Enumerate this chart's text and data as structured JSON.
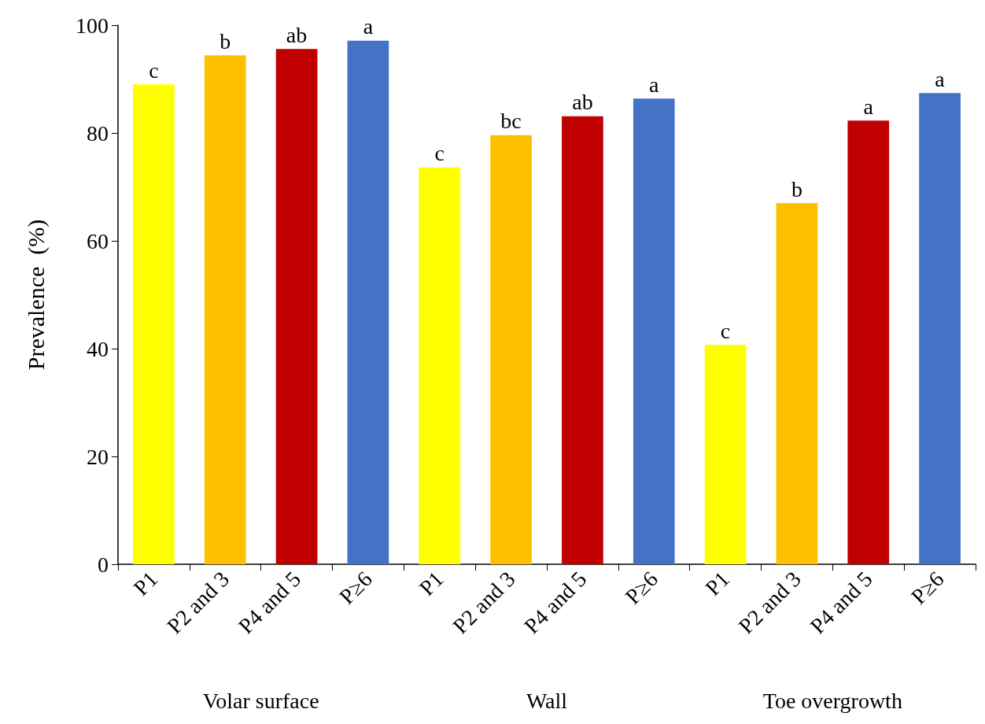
{
  "chart_data": {
    "type": "bar",
    "ylabel": "Prevalence  (%)",
    "categories": [
      "P1",
      "P2 and 3",
      "P4 and 5",
      "P≥6",
      "P1",
      "P2 and 3",
      "P4 and 5",
      "P≥6",
      "P1",
      "P2 and 3",
      "P4 and 5",
      "P≥6"
    ],
    "values": [
      89,
      94.4,
      95.6,
      97.1,
      73.6,
      79.6,
      83.1,
      86.4,
      40.7,
      67,
      82.3,
      87.4
    ],
    "colors": [
      "#ffff00",
      "#ffc000",
      "#c00000",
      "#4472c4",
      "#ffff00",
      "#ffc000",
      "#c00000",
      "#4472c4",
      "#ffff00",
      "#ffc000",
      "#c00000",
      "#4472c4"
    ],
    "value_labels": [
      "c",
      "b",
      "ab",
      "a",
      "c",
      "bc",
      "ab",
      "a",
      "c",
      "b",
      "a",
      "a"
    ],
    "annotations": [
      "Volar surface",
      "Wall",
      "Toe overgrowth"
    ],
    "ylim": [
      0,
      100
    ],
    "yticks": [
      0,
      20,
      40,
      60,
      80,
      100
    ],
    "grid": false
  }
}
